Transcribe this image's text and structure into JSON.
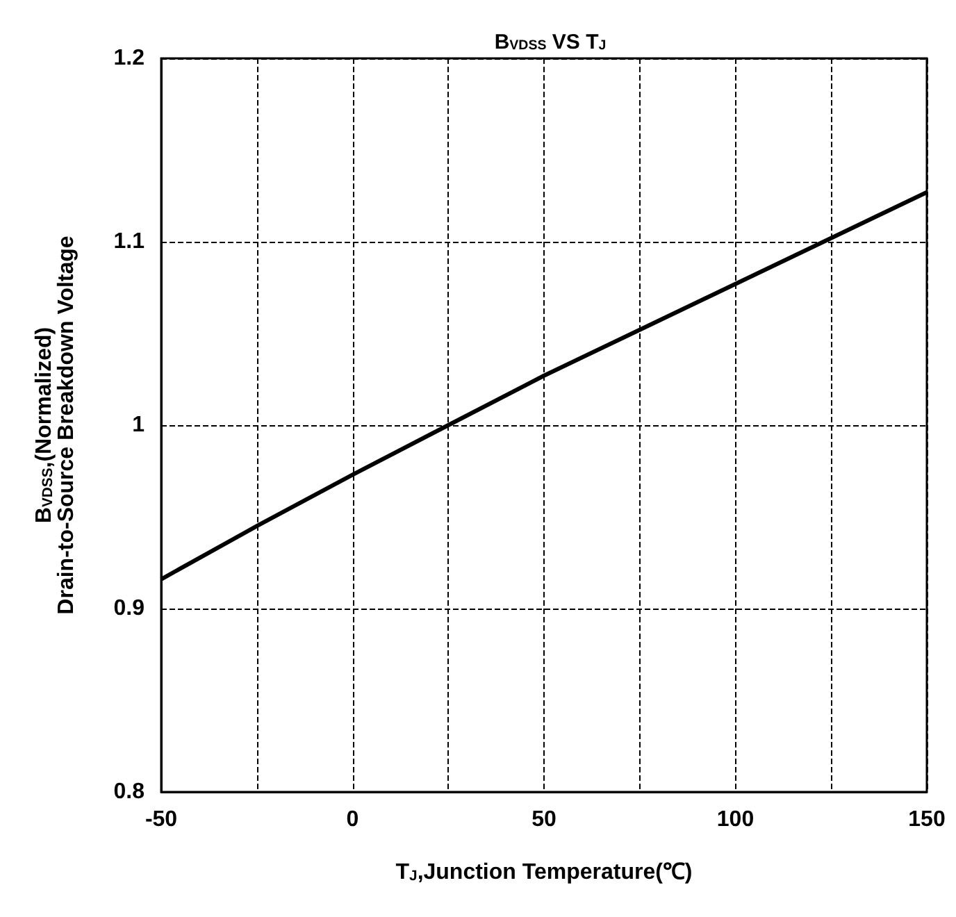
{
  "chart_data": {
    "type": "line",
    "title": "B$_{VDSS}$ VS T$_{J}$",
    "xlabel": "T$_{J}$,Junction Temperature(℃)",
    "ylabel": "B$_{VDSS}$,(Normalized)\nDrain-to-Source Breakdown Voltage",
    "x": [
      -50,
      -25,
      0,
      25,
      50,
      75,
      100,
      125,
      150
    ],
    "series": [
      {
        "color": "#000000",
        "values": [
          0.916,
          0.945,
          0.973,
          1.0,
          1.027,
          1.052,
          1.077,
          1.102,
          1.127
        ]
      }
    ],
    "xlim": [
      -50,
      150
    ],
    "xticks": [
      -50,
      {
        "value": -25,
        "label": null
      },
      0,
      {
        "value": 25,
        "label": null
      },
      50,
      {
        "value": 75,
        "label": null
      },
      100,
      {
        "value": 125,
        "label": null
      },
      150
    ],
    "ylim": [
      0.8,
      1.2
    ],
    "yticks": [
      0.8,
      0.9,
      1,
      1.1,
      1.2
    ],
    "grid": true,
    "marker": "none",
    "line_style": "solid"
  }
}
